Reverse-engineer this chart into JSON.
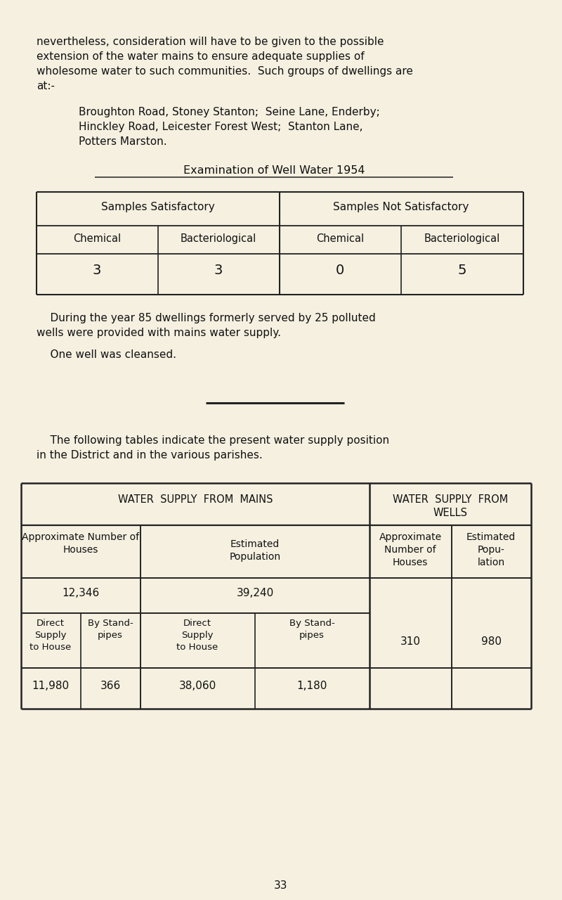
{
  "bg_color": "#f5f0e0",
  "text_color": "#1a1a1a",
  "page_number": "33",
  "p1_lines": [
    "nevertheless, consideration will have to be given to the possible",
    "extension of the water mains to ensure adequate supplies of",
    "wholesome water to such communities.  Such groups of dwellings are",
    "at:-"
  ],
  "p2_lines": [
    "Broughton Road, Stoney Stanton;  Seine Lane, Enderby;",
    "Hinckley Road, Leicester Forest West;  Stanton Lane,",
    "Potters Marston."
  ],
  "section_title": "Examination of Well Water 1954",
  "t1_h1": [
    "Samples Satisfactory",
    "Samples Not Satisfactory"
  ],
  "t1_h2": [
    "Chemical",
    "Bacteriological",
    "Chemical",
    "Bacteriological"
  ],
  "t1_vals": [
    "3",
    "3",
    "0",
    "5"
  ],
  "p3_lines": [
    "    During the year 85 dwellings formerly served by 25 polluted",
    "wells were provided with mains water supply."
  ],
  "p4": "    One well was cleansed.",
  "p5_lines": [
    "    The following tables indicate the present water supply position",
    "in the District and in the various parishes."
  ],
  "t2_mains_hdr": "WATER  SUPPLY  FROM  MAINS",
  "t2_wells_hdr1": "WATER  SUPPLY  FROM",
  "t2_wells_hdr2": "WELLS",
  "t2_ch1": "Approximate Number of",
  "t2_ch2": "Houses",
  "t2_ch3": "Estimated",
  "t2_ch4": "Population",
  "t2_ch5": "Approximate",
  "t2_ch6": "Number of",
  "t2_ch7": "Houses",
  "t2_ch8": "Estimated",
  "t2_ch9": "Popu-",
  "t2_ch10": "lation",
  "t2_tot1": "12,346",
  "t2_tot2": "39,240",
  "t2_sub1": [
    "Direct",
    "Supply",
    "to House"
  ],
  "t2_sub2": [
    "By Stand-",
    "pipes"
  ],
  "t2_sub3": [
    "Direct",
    "Supply",
    "to House"
  ],
  "t2_sub4": [
    "By Stand-",
    "pipes"
  ],
  "t2_wells_310": "310",
  "t2_wells_980": "980",
  "t2_d1": "11,980",
  "t2_d2": "366",
  "t2_d3": "38,060",
  "t2_d4": "1,180"
}
